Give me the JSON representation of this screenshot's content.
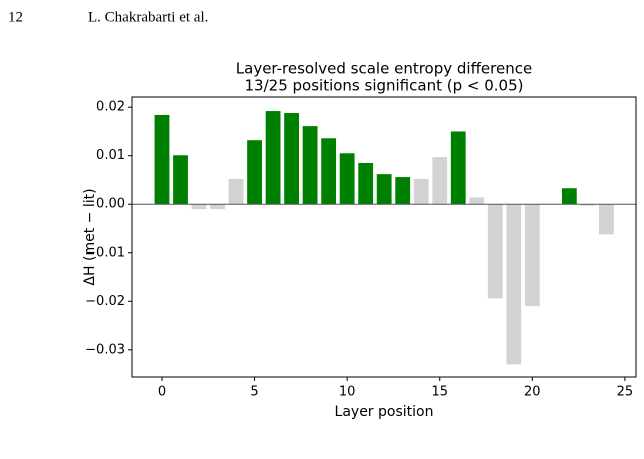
{
  "header": {
    "page_number": "12",
    "authors": "L. Chakrabarti et al."
  },
  "chart_data": {
    "type": "bar",
    "title": "Layer-resolved scale entropy difference",
    "subtitle": "13/25 positions significant (p < 0.05)",
    "x_label": "Layer position",
    "y_label": "ΔH (met − lit)",
    "x": [
      0,
      1,
      2,
      3,
      4,
      5,
      6,
      7,
      8,
      9,
      10,
      11,
      12,
      13,
      14,
      15,
      16,
      17,
      18,
      19,
      20,
      21,
      22,
      23,
      24
    ],
    "values": [
      0.0184,
      0.0101,
      -0.001,
      -0.001,
      0.0052,
      0.0132,
      0.0192,
      0.0188,
      0.0161,
      0.0136,
      0.0105,
      0.0085,
      0.0062,
      0.0056,
      0.0052,
      0.0097,
      0.015,
      0.0014,
      -0.0194,
      -0.033,
      -0.021,
      0,
      0.0033,
      -0.0003,
      -0.0062
    ],
    "colors": [
      "#008000",
      "#008000",
      "#d3d3d3",
      "#d3d3d3",
      "#d3d3d3",
      "#008000",
      "#008000",
      "#008000",
      "#008000",
      "#008000",
      "#008000",
      "#008000",
      "#008000",
      "#008000",
      "#d3d3d3",
      "#d3d3d3",
      "#008000",
      "#d3d3d3",
      "#d3d3d3",
      "#d3d3d3",
      "#d3d3d3",
      "#d3d3d3",
      "#008000",
      "#d3d3d3",
      "#d3d3d3"
    ],
    "xlim": [
      -1.62,
      25.6
    ],
    "xticks": [
      0,
      5,
      10,
      15,
      20,
      25
    ],
    "ylim": [
      -0.0356,
      0.0221
    ],
    "yticks": [
      {
        "value": -0.03,
        "label": "−0.03"
      },
      {
        "value": -0.02,
        "label": "−0.02"
      },
      {
        "value": -0.01,
        "label": "−0.01"
      },
      {
        "value": 0,
        "label": "0.00"
      },
      {
        "value": 0.01,
        "label": "0.01"
      },
      {
        "value": 0.02,
        "label": "0.02"
      }
    ],
    "zero_line": true
  }
}
